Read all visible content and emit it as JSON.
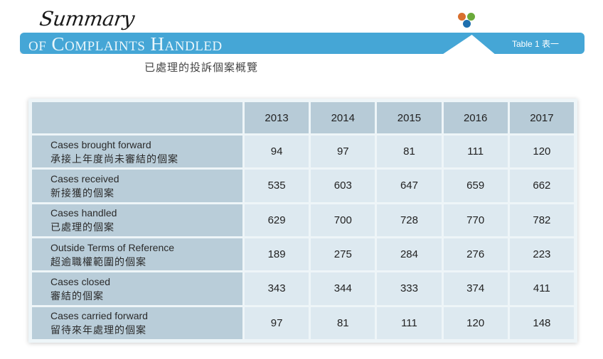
{
  "header": {
    "script_title": "Summary",
    "banner_title": "of Complaints Handled",
    "table_tag": "Table 1 表一",
    "subtitle_zh": "已處理的投訴個案概覽",
    "colors": {
      "banner": "#45a6d6",
      "dot_orange": "#d86f2e",
      "dot_green": "#6aaa3a",
      "dot_blue": "#1f6fae"
    }
  },
  "table": {
    "columns": [
      "2013",
      "2014",
      "2015",
      "2016",
      "2017"
    ],
    "rows": [
      {
        "label_en": "Cases brought forward",
        "label_zh": "承接上年度尚未審結的個案",
        "values": [
          "94",
          "97",
          "81",
          "111",
          "120"
        ]
      },
      {
        "label_en": "Cases received",
        "label_zh": "新接獲的個案",
        "values": [
          "535",
          "603",
          "647",
          "659",
          "662"
        ]
      },
      {
        "label_en": "Cases handled",
        "label_zh": "已處理的個案",
        "values": [
          "629",
          "700",
          "728",
          "770",
          "782"
        ]
      },
      {
        "label_en": "Outside Terms of Reference",
        "label_zh": "超逾職權範圍的個案",
        "values": [
          "189",
          "275",
          "284",
          "276",
          "223"
        ]
      },
      {
        "label_en": "Cases closed",
        "label_zh": "審結的個案",
        "values": [
          "343",
          "344",
          "333",
          "374",
          "411"
        ]
      },
      {
        "label_en": "Cases carried forward",
        "label_zh": "留待來年處理的個案",
        "values": [
          "97",
          "81",
          "111",
          "120",
          "148"
        ]
      }
    ]
  }
}
